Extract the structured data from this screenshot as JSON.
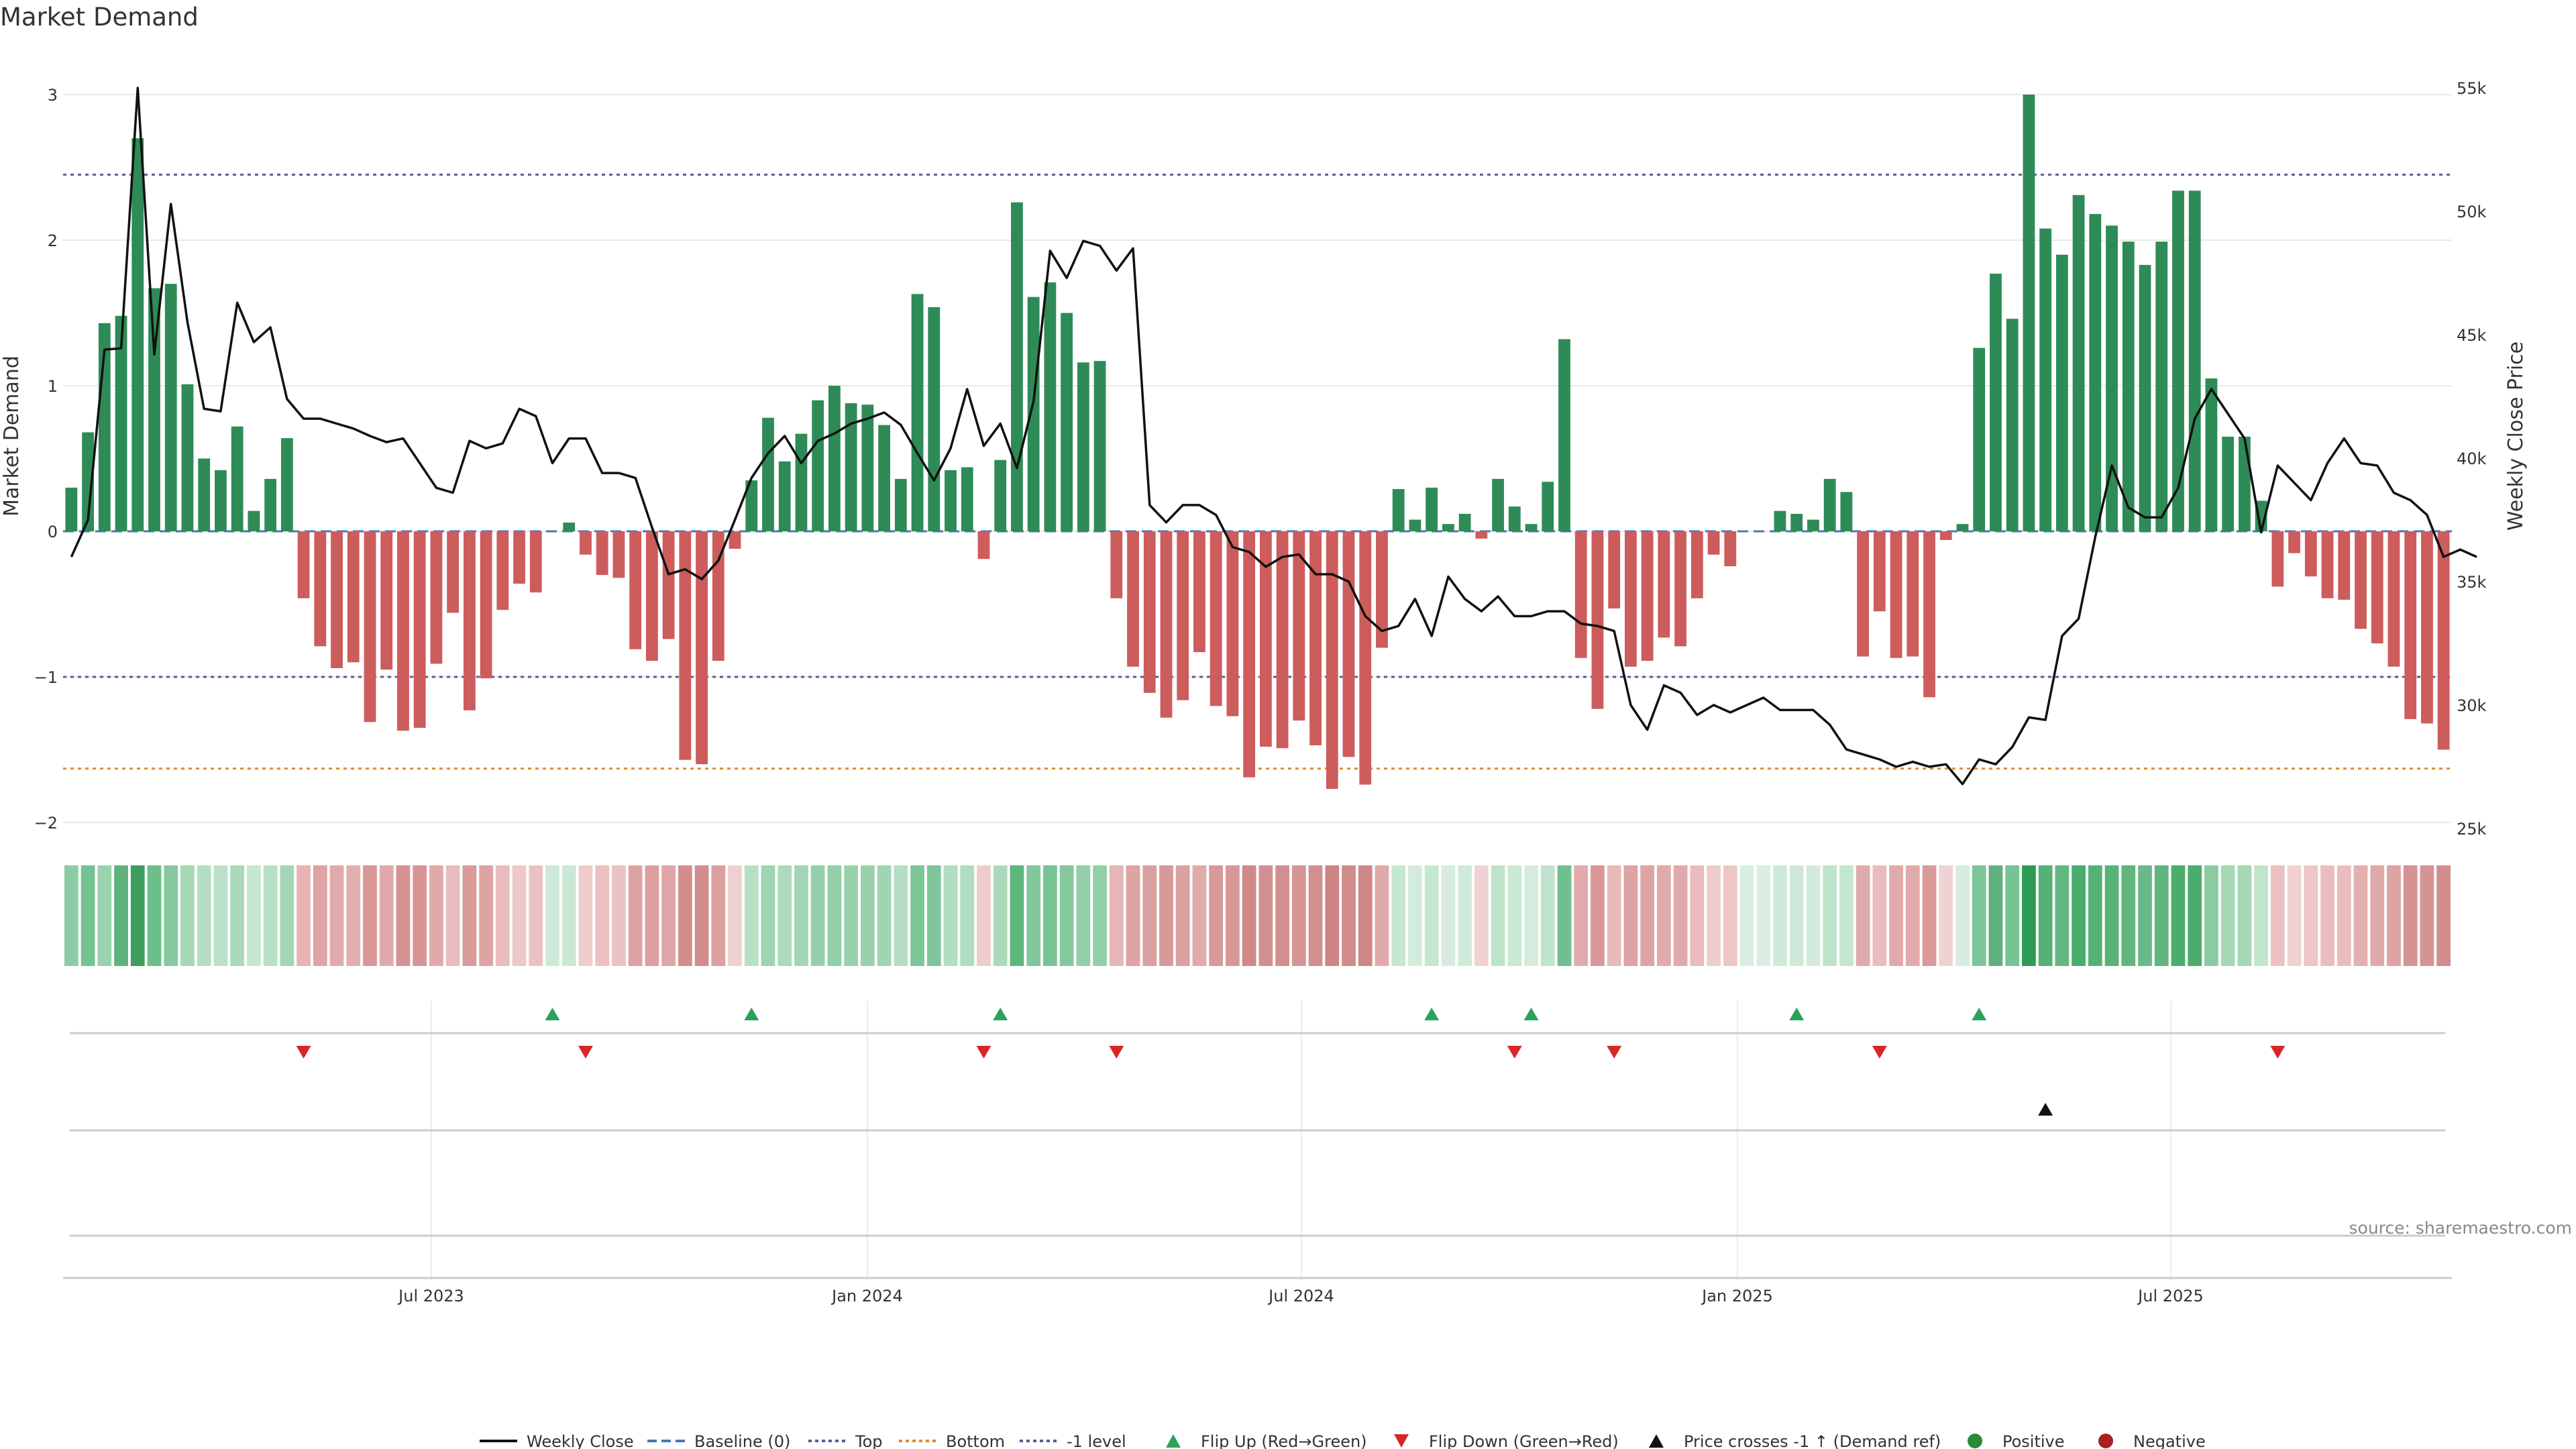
{
  "chart_data": {
    "type": "bar",
    "title": "Market Demand",
    "source": "source: sharemaestro.com",
    "ylabel": "Market Demand",
    "y2label": "Weekly Close Price",
    "ylim": [
      -2,
      3
    ],
    "y_ticks": [
      3,
      2,
      1,
      0,
      -1,
      -2
    ],
    "y_tick_labels": [
      "3",
      "2",
      "1",
      "0",
      "−1",
      "−2"
    ],
    "y2lim": [
      25000,
      55000
    ],
    "y2_ticks": [
      55000,
      50000,
      45000,
      40000,
      35000,
      30000,
      25000
    ],
    "y2_tick_labels": [
      "55k",
      "50k",
      "45k",
      "40k",
      "35k",
      "30k",
      "25k"
    ],
    "x_tick_labels": [
      "Jul 2023",
      "Jan 2024",
      "Jul 2024",
      "Jan 2025",
      "Jul 2025"
    ],
    "reference_lines": [
      {
        "name": "Top",
        "value": 2.45,
        "color": "#5a5a9a",
        "style": "dotted"
      },
      {
        "name": "Bottom",
        "value": -1.63,
        "color": "#e08a2c",
        "style": "dotted"
      },
      {
        "name": "-1 level",
        "value": -1.0,
        "color": "#5a5a9a",
        "style": "dotted"
      },
      {
        "name": "Baseline (0)",
        "value": 0,
        "color": "#4a78b0",
        "style": "dashed"
      }
    ],
    "colors": {
      "positive": "#2e8b57",
      "negative": "#cd5c5c",
      "price": "#111111",
      "flip_up": "#2aa35a",
      "flip_down": "#d62728",
      "cross": "#111111"
    },
    "demand": [
      0.3,
      0.68,
      1.43,
      1.48,
      2.7,
      1.67,
      1.7,
      1.01,
      0.5,
      0.42,
      0.72,
      0.14,
      0.36,
      0.64,
      -0.46,
      -0.79,
      -0.94,
      -0.9,
      -1.31,
      -0.95,
      -1.37,
      -1.35,
      -0.91,
      -0.56,
      -1.23,
      -1.01,
      -0.54,
      -0.36,
      -0.42,
      0.0,
      0.06,
      -0.16,
      -0.3,
      -0.32,
      -0.81,
      -0.89,
      -0.74,
      -1.57,
      -1.6,
      -0.89,
      -0.12,
      0.35,
      0.78,
      0.48,
      0.67,
      0.9,
      1.0,
      0.88,
      0.87,
      0.73,
      0.36,
      1.63,
      1.54,
      0.42,
      0.44,
      -0.19,
      0.49,
      2.26,
      1.61,
      1.71,
      1.5,
      1.16,
      1.17,
      -0.46,
      -0.93,
      -1.11,
      -1.28,
      -1.16,
      -0.83,
      -1.2,
      -1.27,
      -1.69,
      -1.48,
      -1.49,
      -1.3,
      -1.47,
      -1.77,
      -1.55,
      -1.74,
      -0.8,
      0.29,
      0.08,
      0.3,
      0.05,
      0.12,
      -0.05,
      0.36,
      0.17,
      0.05,
      0.34,
      1.32,
      -0.87,
      -1.22,
      -0.53,
      -0.93,
      -0.89,
      -0.73,
      -0.79,
      -0.46,
      -0.16,
      -0.24,
      0.0,
      0.0,
      0.14,
      0.12,
      0.08,
      0.36,
      0.27,
      -0.86,
      -0.55,
      -0.87,
      -0.86,
      -1.14,
      -0.06,
      0.05,
      1.26,
      1.77,
      1.46,
      3.0,
      2.08,
      1.9,
      2.31,
      2.18,
      2.1,
      1.99,
      1.83,
      1.99,
      2.34,
      2.34,
      1.05,
      0.65,
      0.65,
      0.21,
      -0.38,
      -0.15,
      -0.31,
      -0.46,
      -0.47,
      -0.67,
      -0.77,
      -0.93,
      -1.29,
      -1.32,
      -1.5
    ],
    "weekly_close": [
      36000,
      37500,
      44400,
      44450,
      55000,
      44200,
      50300,
      45500,
      42000,
      41900,
      46300,
      44700,
      45300,
      42400,
      41600,
      41600,
      41400,
      41200,
      40900,
      40650,
      40800,
      39800,
      38800,
      38600,
      40700,
      40400,
      40600,
      42000,
      41700,
      39800,
      40800,
      40800,
      39400,
      39400,
      39200,
      37200,
      35300,
      35500,
      35100,
      35850,
      37500,
      39200,
      40200,
      40900,
      39800,
      40700,
      41000,
      41400,
      41600,
      41850,
      41350,
      40200,
      39100,
      40400,
      42800,
      40500,
      41400,
      39600,
      42300,
      48400,
      47300,
      48800,
      48600,
      47600,
      48500,
      38100,
      37400,
      38100,
      38100,
      37700,
      36400,
      36200,
      35600,
      36000,
      36100,
      35300,
      35300,
      35000,
      33600,
      33000,
      33200,
      34300,
      32800,
      35200,
      34300,
      33800,
      34400,
      33600,
      33600,
      33800,
      33800,
      33300,
      33200,
      33000,
      30000,
      29000,
      30800,
      30500,
      29600,
      30000,
      29700,
      30000,
      30300,
      29800,
      29800,
      29800,
      29200,
      28200,
      28000,
      27800,
      27500,
      27700,
      27500,
      27600,
      26800,
      27800,
      27600,
      28300,
      29500,
      29400,
      32800,
      33500,
      36800,
      39700,
      38000,
      37600,
      37600,
      38800,
      41600,
      42800,
      41800,
      40800,
      37000,
      39700,
      39000,
      38300,
      39800,
      40800,
      39800,
      39700,
      38600,
      38300,
      37700,
      36000,
      36300,
      36000
    ],
    "strip_colors": [
      "#8dcca3",
      "#73c291",
      "#9ad3ae",
      "#5fb17d",
      "#3c9d5e",
      "#6cbe8b",
      "#87c99f",
      "#a6d8b6",
      "#b4dec3",
      "#bbe1c8",
      "#a9d9b9",
      "#c5e6d0",
      "#b9e0c6",
      "#a2d6b4",
      "#e6b4b4",
      "#dea3a3",
      "#e1aaaa",
      "#e3aeae",
      "#d89696",
      "#e1aaaa",
      "#d69292",
      "#d89595",
      "#e1aaaa",
      "#e9bdbd",
      "#da9a9a",
      "#dea3a3",
      "#e9bdbd",
      "#edc8c8",
      "#ebc2c2",
      "#cfe9d8",
      "#cbe8d5",
      "#efcccc",
      "#ebc1c1",
      "#ebc1c1",
      "#dea2a2",
      "#dca0a0",
      "#dfa6a6",
      "#d48d8d",
      "#d48d8d",
      "#dca0a0",
      "#efd0d0",
      "#b7dfc4",
      "#9fd4b1",
      "#acdabb",
      "#a3d6b4",
      "#96d0aa",
      "#92cfa7",
      "#98d1ab",
      "#99d1ac",
      "#a0d4b2",
      "#b5dec3",
      "#7bc597",
      "#7ec69a",
      "#b2ddc0",
      "#b1dcbf",
      "#eeccc9",
      "#abdaba",
      "#5db77c",
      "#80c79b",
      "#78c495",
      "#85c89d",
      "#93cfa8",
      "#93cfa8",
      "#e6b5b5",
      "#dea3a3",
      "#daa0a0",
      "#d89999",
      "#dca0a0",
      "#e1abab",
      "#d89999",
      "#d89797",
      "#d08888",
      "#d38f8f",
      "#d38f8f",
      "#d69494",
      "#d38f8f",
      "#cf8585",
      "#d18b8b",
      "#cf8686",
      "#e1aaaa",
      "#c6e7d1",
      "#d3ebdb",
      "#c5e6d0",
      "#d7ecde",
      "#d0ead9",
      "#f0d2d2",
      "#bee3cb",
      "#cbe8d5",
      "#d5ecdd",
      "#bfe3cc",
      "#70c08f",
      "#e2aaaa",
      "#d99898",
      "#e8baba",
      "#dea3a3",
      "#dea3a3",
      "#e2aaaa",
      "#e1aaaa",
      "#e9bdbd",
      "#efcccc",
      "#edc7c7",
      "#d9eee0",
      "#d9eee0",
      "#cfe9d8",
      "#cfe9d8",
      "#d3ebdb",
      "#bee3cb",
      "#c5e6d0",
      "#e1aaaa",
      "#e9bdbd",
      "#e1aaaa",
      "#e1aaaa",
      "#da9a9a",
      "#f0d2d2",
      "#d7ecde",
      "#7dc599",
      "#5fb17d",
      "#76c394",
      "#2e9b55",
      "#55b276",
      "#62b780",
      "#4aad6e",
      "#55b276",
      "#58b378",
      "#60b67e",
      "#6ab98a",
      "#60b67e",
      "#4aad6e",
      "#4aad6e",
      "#8acba2",
      "#a6d8b6",
      "#a6d8b6",
      "#c1e4cd",
      "#ebc1c1",
      "#f0d1d1",
      "#edc6c6",
      "#e9bdbd",
      "#e9bdbd",
      "#e3afaf",
      "#e0a9a9",
      "#dea3a3",
      "#d69393",
      "#d69393",
      "#d28c8c"
    ],
    "flip_up_index": [
      29,
      41,
      56,
      82,
      88,
      104,
      115
    ],
    "flip_down_index": [
      14,
      31,
      55,
      63,
      87,
      93,
      109,
      133
    ],
    "price_cross_index": [
      119
    ],
    "legend": [
      {
        "label": "Weekly Close",
        "kind": "line-solid",
        "color": "#111111"
      },
      {
        "label": "Baseline (0)",
        "kind": "line-dashed",
        "color": "#4a78b0"
      },
      {
        "label": "Top",
        "kind": "line-dotted",
        "color": "#5a5a9a"
      },
      {
        "label": "Bottom",
        "kind": "line-dotted",
        "color": "#e08a2c"
      },
      {
        "label": "-1 level",
        "kind": "line-dotted",
        "color": "#5a5a9a"
      },
      {
        "label": "Flip Up (Red→Green)",
        "kind": "tri-up",
        "color": "#2aa35a"
      },
      {
        "label": "Flip Down (Green→Red)",
        "kind": "tri-down",
        "color": "#d62728"
      },
      {
        "label": "Price crosses -1 ↑ (Demand ref)",
        "kind": "tri-up",
        "color": "#111111"
      },
      {
        "label": "Positive",
        "kind": "dot",
        "color": "#2a8a3a"
      },
      {
        "label": "Negative",
        "kind": "dot",
        "color": "#a82020"
      }
    ]
  }
}
